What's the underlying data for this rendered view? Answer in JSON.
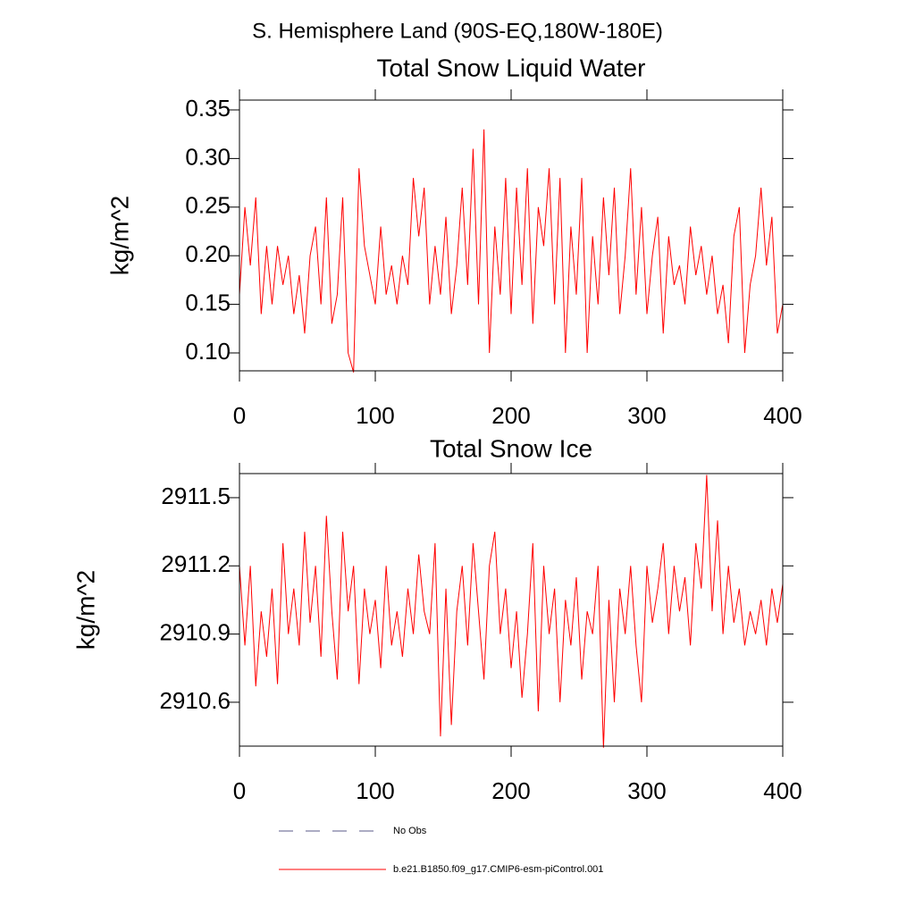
{
  "title": "S. Hemisphere Land (90S-EQ,180W-180E)",
  "legend_extra": {
    "name": "No Obs",
    "color": "#5a5a8a"
  },
  "chart_data": [
    {
      "type": "line",
      "title": "Total Snow Liquid Water",
      "y_label": "kg/m^2",
      "x": [
        0,
        4,
        8,
        12,
        16,
        20,
        24,
        28,
        32,
        36,
        40,
        44,
        48,
        52,
        56,
        60,
        64,
        68,
        72,
        76,
        80,
        84,
        88,
        92,
        96,
        100,
        104,
        108,
        112,
        116,
        120,
        124,
        128,
        132,
        136,
        140,
        144,
        148,
        152,
        156,
        160,
        164,
        168,
        172,
        176,
        180,
        184,
        188,
        192,
        196,
        200,
        204,
        208,
        212,
        216,
        220,
        224,
        228,
        232,
        236,
        240,
        244,
        248,
        252,
        256,
        260,
        264,
        268,
        272,
        276,
        280,
        284,
        288,
        292,
        296,
        300,
        304,
        308,
        312,
        316,
        320,
        324,
        328,
        332,
        336,
        340,
        344,
        348,
        352,
        356,
        360,
        364,
        368,
        372,
        376,
        380,
        384,
        388,
        392,
        396,
        400
      ],
      "series": [
        {
          "name": "b.e21.B1850.f09_g17.CMIP6-esm-piControl.001",
          "color": "#ff0000",
          "values": [
            0.16,
            0.25,
            0.19,
            0.26,
            0.14,
            0.21,
            0.15,
            0.21,
            0.17,
            0.2,
            0.14,
            0.18,
            0.12,
            0.2,
            0.23,
            0.15,
            0.26,
            0.13,
            0.16,
            0.26,
            0.1,
            0.08,
            0.29,
            0.21,
            0.18,
            0.15,
            0.23,
            0.16,
            0.19,
            0.15,
            0.2,
            0.17,
            0.28,
            0.22,
            0.27,
            0.15,
            0.21,
            0.16,
            0.24,
            0.14,
            0.19,
            0.27,
            0.17,
            0.31,
            0.15,
            0.33,
            0.1,
            0.23,
            0.16,
            0.28,
            0.14,
            0.27,
            0.17,
            0.29,
            0.13,
            0.25,
            0.21,
            0.29,
            0.15,
            0.28,
            0.1,
            0.23,
            0.16,
            0.28,
            0.1,
            0.22,
            0.15,
            0.26,
            0.18,
            0.27,
            0.14,
            0.2,
            0.29,
            0.16,
            0.25,
            0.14,
            0.2,
            0.24,
            0.12,
            0.22,
            0.17,
            0.19,
            0.15,
            0.23,
            0.18,
            0.21,
            0.16,
            0.2,
            0.14,
            0.17,
            0.11,
            0.22,
            0.25,
            0.1,
            0.17,
            0.2,
            0.27,
            0.19,
            0.24,
            0.12,
            0.15
          ]
        }
      ],
      "xlim": [
        0,
        400
      ],
      "xticks": [
        0,
        100,
        200,
        300,
        400
      ],
      "ylim": [
        0.0816,
        0.3601
      ],
      "yticks": [
        {
          "value": 0.1,
          "label": "0.10"
        },
        0.15,
        {
          "value": 0.2,
          "label": "0.20"
        },
        0.25,
        {
          "value": 0.3,
          "label": "0.30"
        },
        0.35
      ]
    },
    {
      "type": "line",
      "title": "Total Snow Ice",
      "y_label": "kg/m^2",
      "x": [
        0,
        4,
        8,
        12,
        16,
        20,
        24,
        28,
        32,
        36,
        40,
        44,
        48,
        52,
        56,
        60,
        64,
        68,
        72,
        76,
        80,
        84,
        88,
        92,
        96,
        100,
        104,
        108,
        112,
        116,
        120,
        124,
        128,
        132,
        136,
        140,
        144,
        148,
        152,
        156,
        160,
        164,
        168,
        172,
        176,
        180,
        184,
        188,
        192,
        196,
        200,
        204,
        208,
        212,
        216,
        220,
        224,
        228,
        232,
        236,
        240,
        244,
        248,
        252,
        256,
        260,
        264,
        268,
        272,
        276,
        280,
        284,
        288,
        292,
        296,
        300,
        304,
        308,
        312,
        316,
        320,
        324,
        328,
        332,
        336,
        340,
        344,
        348,
        352,
        356,
        360,
        364,
        368,
        372,
        376,
        380,
        384,
        388,
        392,
        396,
        400
      ],
      "series": [
        {
          "name": "b.e21.B1850.f09_g17.CMIP6-esm-piControl.001",
          "color": "#ff0000",
          "values": [
            2911.2,
            2910.85,
            2911.2,
            2910.67,
            2911.0,
            2910.8,
            2911.1,
            2910.68,
            2911.3,
            2910.9,
            2911.1,
            2910.85,
            2911.35,
            2910.95,
            2911.2,
            2910.8,
            2911.42,
            2911.0,
            2910.7,
            2911.35,
            2911.0,
            2911.2,
            2910.68,
            2911.1,
            2910.9,
            2911.05,
            2910.75,
            2911.2,
            2910.85,
            2911.0,
            2910.8,
            2911.1,
            2910.9,
            2911.25,
            2911.0,
            2910.9,
            2911.3,
            2910.45,
            2911.1,
            2910.5,
            2911.0,
            2911.2,
            2910.85,
            2911.3,
            2911.0,
            2910.7,
            2911.2,
            2911.35,
            2910.9,
            2911.1,
            2910.75,
            2911.0,
            2910.62,
            2910.9,
            2911.3,
            2910.56,
            2911.2,
            2910.9,
            2911.1,
            2910.6,
            2911.05,
            2910.85,
            2911.15,
            2910.7,
            2911.0,
            2910.9,
            2911.2,
            2910.4,
            2911.05,
            2910.6,
            2911.1,
            2910.9,
            2911.2,
            2910.85,
            2910.6,
            2911.2,
            2910.95,
            2911.1,
            2911.3,
            2910.9,
            2911.2,
            2911.0,
            2911.15,
            2910.85,
            2911.3,
            2911.1,
            2911.6,
            2911.0,
            2911.4,
            2910.9,
            2911.2,
            2910.95,
            2911.1,
            2910.85,
            2911.0,
            2910.9,
            2911.05,
            2910.85,
            2911.1,
            2910.95,
            2911.12
          ]
        }
      ],
      "xlim": [
        0,
        400
      ],
      "xticks": [
        0,
        100,
        200,
        300,
        400
      ],
      "ylim": [
        2910.407,
        2911.606
      ],
      "yticks": [
        2910.6,
        2910.9,
        2911.2,
        2911.5
      ]
    }
  ]
}
